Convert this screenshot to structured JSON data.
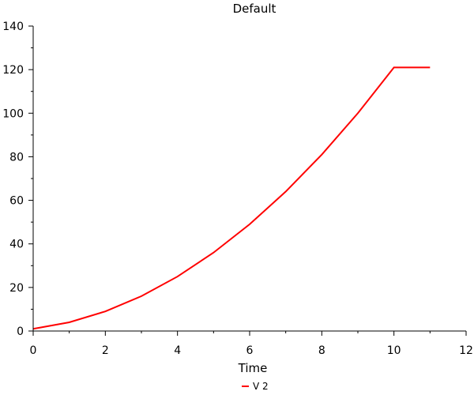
{
  "chart_data": {
    "type": "line",
    "title": "Default",
    "xlabel": "Time",
    "ylabel": "",
    "xlim": [
      0,
      12
    ],
    "ylim": [
      0,
      140
    ],
    "x_ticks": [
      0,
      2,
      4,
      6,
      8,
      10,
      12
    ],
    "y_ticks": [
      0,
      20,
      40,
      60,
      80,
      100,
      120,
      140
    ],
    "grid": false,
    "legend_position": "bottom-center",
    "series": [
      {
        "name": "V 2",
        "color": "#ff0000",
        "x": [
          0,
          1,
          2,
          3,
          4,
          5,
          6,
          7,
          8,
          9,
          10,
          11
        ],
        "values": [
          1,
          4,
          9,
          16,
          25,
          36,
          49,
          64,
          81,
          100,
          121,
          121
        ]
      }
    ]
  }
}
